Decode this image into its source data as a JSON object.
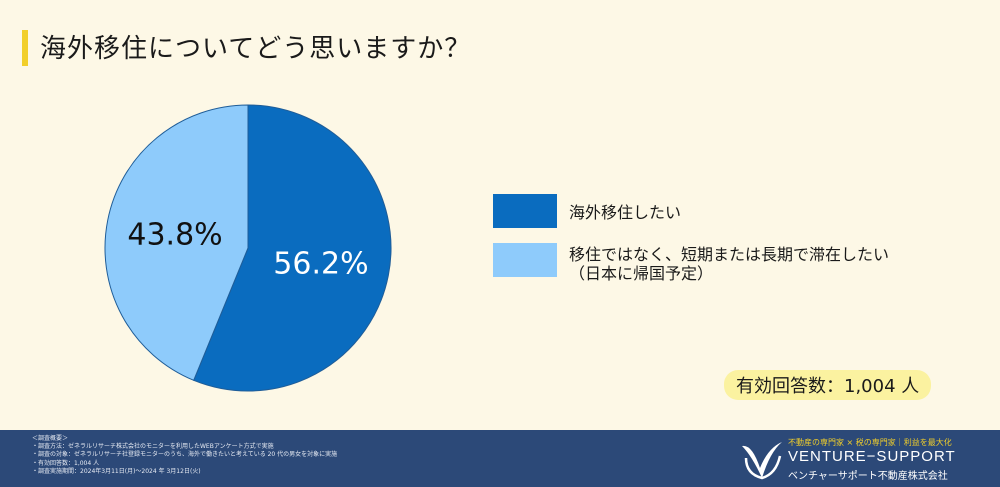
{
  "title": "海外移住についてどう思いますか？",
  "chart_data": {
    "type": "pie",
    "slices": [
      {
        "label": "海外移住したい",
        "value": 56.2,
        "display": "56.2%",
        "color": "#0a6cbf"
      },
      {
        "label": "移住ではなく、短期または長期で滞在したい（日本に帰国予定）",
        "value": 43.8,
        "display": "43.8%",
        "color": "#8ecbfb"
      }
    ],
    "legend_placement": "right"
  },
  "legend": [
    {
      "lines": [
        "海外移住したい"
      ]
    },
    {
      "lines": [
        "移住ではなく、短期または長期で滞在したい",
        "（日本に帰国予定）"
      ]
    }
  ],
  "response_count": "有効回答数：1,004 人",
  "footer": {
    "notes": [
      "＜調査概要＞",
      "・調査方法：ゼネラルリサーチ株式会社のモニターを利用したWEBアンケート方式で実施",
      "・調査の対象：ゼネラルリサーチ社登録モニターのうち、海外で働きたいと考えている 20 代の男女を対象に実施",
      "・有効回答数：1,004 人",
      "・調査実施期間：2024年3月11日(月)～2024 年 3月12日(火)"
    ],
    "brand_tagline": "不動産の専門家 × 税の専門家｜利益を最大化",
    "brand_name": "VENTURE−SUPPORT",
    "brand_sub": "ベンチャーサポート不動産株式会社"
  },
  "colors": {
    "background": "#fdf8e6",
    "title_accent": "#f2cf2a",
    "footer": "#2c4978"
  }
}
